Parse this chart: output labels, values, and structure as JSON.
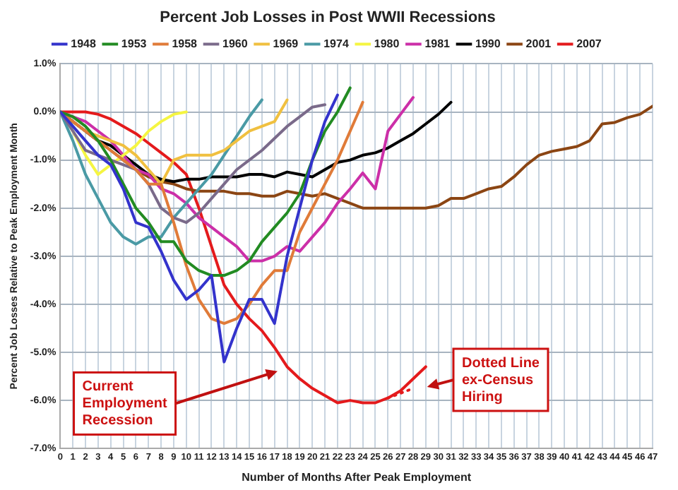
{
  "chart_data": {
    "type": "line",
    "title": "Percent Job Losses in Post WWII Recessions",
    "xlabel": "Number of Months After Peak Employment",
    "ylabel": "Percent Job Losses Relative to Peak Employment Month",
    "x": [
      0,
      1,
      2,
      3,
      4,
      5,
      6,
      7,
      8,
      9,
      10,
      11,
      12,
      13,
      14,
      15,
      16,
      17,
      18,
      19,
      20,
      21,
      22,
      23,
      24,
      25,
      26,
      27,
      28,
      29,
      30,
      31,
      32,
      33,
      34,
      35,
      36,
      37,
      38,
      39,
      40,
      41,
      42,
      43,
      44,
      45,
      46,
      47
    ],
    "xlim": [
      0,
      47
    ],
    "xticks": [
      0,
      1,
      2,
      3,
      4,
      5,
      6,
      7,
      8,
      9,
      10,
      11,
      12,
      13,
      14,
      15,
      16,
      17,
      18,
      19,
      20,
      21,
      22,
      23,
      24,
      25,
      26,
      27,
      28,
      29,
      30,
      31,
      32,
      33,
      34,
      35,
      36,
      37,
      38,
      39,
      40,
      41,
      42,
      43,
      44,
      45,
      46,
      47
    ],
    "ylim": [
      -7,
      1
    ],
    "yticks": [
      {
        "value": -7,
        "label": "-7.0%"
      },
      {
        "value": -6,
        "label": "-6.0%"
      },
      {
        "value": -5,
        "label": "-5.0%"
      },
      {
        "value": -4,
        "label": "-4.0%"
      },
      {
        "value": -3,
        "label": "-3.0%"
      },
      {
        "value": -2,
        "label": "-2.0%"
      },
      {
        "value": -1,
        "label": "-1.0%"
      },
      {
        "value": 0,
        "label": "0.0%"
      },
      {
        "value": 1,
        "label": "1.0%"
      }
    ],
    "grid": true,
    "legend": "top",
    "marker": "none",
    "series": [
      {
        "name": "1948",
        "color": "#3333cc",
        "values": [
          0,
          -0.3,
          -0.6,
          -0.9,
          -1.1,
          -1.6,
          -2.3,
          -2.4,
          -2.9,
          -3.5,
          -3.9,
          -3.7,
          -3.4,
          -5.2,
          -4.5,
          -3.9,
          -3.9,
          -4.4,
          -3.0,
          -2.0,
          -1.0,
          -0.2,
          0.35,
          null,
          null,
          null,
          null,
          null,
          null,
          null,
          null,
          null,
          null,
          null,
          null,
          null,
          null,
          null,
          null,
          null,
          null,
          null,
          null,
          null,
          null,
          null,
          null,
          null
        ]
      },
      {
        "name": "1953",
        "color": "#228b22",
        "values": [
          0,
          -0.1,
          -0.3,
          -0.6,
          -1.0,
          -1.5,
          -2.0,
          -2.3,
          -2.7,
          -2.7,
          -3.1,
          -3.3,
          -3.4,
          -3.4,
          -3.3,
          -3.1,
          -2.7,
          -2.4,
          -2.1,
          -1.7,
          -1.0,
          -0.4,
          0.0,
          0.5,
          null,
          null,
          null,
          null,
          null,
          null,
          null,
          null,
          null,
          null,
          null,
          null,
          null,
          null,
          null,
          null,
          null,
          null,
          null,
          null,
          null,
          null,
          null,
          null
        ]
      },
      {
        "name": "1958",
        "color": "#e07b39",
        "values": [
          0,
          -0.2,
          -0.4,
          -0.6,
          -0.8,
          -1.0,
          -1.2,
          -1.5,
          -1.5,
          -2.3,
          -3.2,
          -3.9,
          -4.3,
          -4.4,
          -4.3,
          -4.0,
          -3.6,
          -3.3,
          -3.3,
          -2.5,
          -2.0,
          -1.5,
          -1.0,
          -0.4,
          0.2,
          null,
          null,
          null,
          null,
          null,
          null,
          null,
          null,
          null,
          null,
          null,
          null,
          null,
          null,
          null,
          null,
          null,
          null,
          null,
          null,
          null,
          null,
          null
        ]
      },
      {
        "name": "1960",
        "color": "#7a6a8a",
        "values": [
          0,
          -0.4,
          -0.8,
          -0.9,
          -1.0,
          -1.1,
          -1.2,
          -1.5,
          -2.0,
          -2.2,
          -2.3,
          -2.1,
          -1.8,
          -1.5,
          -1.2,
          -1.0,
          -0.8,
          -0.55,
          -0.3,
          -0.1,
          0.1,
          0.15,
          null,
          null,
          null,
          null,
          null,
          null,
          null,
          null,
          null,
          null,
          null,
          null,
          null,
          null,
          null,
          null,
          null,
          null,
          null,
          null,
          null,
          null,
          null,
          null,
          null,
          null
        ]
      },
      {
        "name": "1969",
        "color": "#f0c040",
        "values": [
          0,
          -0.2,
          -0.4,
          -0.5,
          -0.6,
          -0.7,
          -0.9,
          -1.2,
          -1.5,
          -1.0,
          -0.9,
          -0.9,
          -0.9,
          -0.8,
          -0.6,
          -0.4,
          -0.3,
          -0.2,
          0.25,
          null,
          null,
          null,
          null,
          null,
          null,
          null,
          null,
          null,
          null,
          null,
          null,
          null,
          null,
          null,
          null,
          null,
          null,
          null,
          null,
          null,
          null,
          null,
          null,
          null,
          null,
          null,
          null,
          null
        ]
      },
      {
        "name": "1974",
        "color": "#4a9aa5",
        "values": [
          0,
          -0.6,
          -1.3,
          -1.8,
          -2.3,
          -2.6,
          -2.75,
          -2.6,
          -2.6,
          -2.2,
          -1.9,
          -1.6,
          -1.3,
          -0.9,
          -0.5,
          -0.1,
          0.25,
          null,
          null,
          null,
          null,
          null,
          null,
          null,
          null,
          null,
          null,
          null,
          null,
          null,
          null,
          null,
          null,
          null,
          null,
          null,
          null,
          null,
          null,
          null,
          null,
          null,
          null,
          null,
          null,
          null,
          null,
          null
        ]
      },
      {
        "name": "1980",
        "color": "#f5f542",
        "values": [
          0,
          -0.4,
          -0.9,
          -1.3,
          -1.1,
          -0.9,
          -0.7,
          -0.4,
          -0.2,
          -0.05,
          0.0,
          null,
          null,
          null,
          null,
          null,
          null,
          null,
          null,
          null,
          null,
          null,
          null,
          null,
          null,
          null,
          null,
          null,
          null,
          null,
          null,
          null,
          null,
          null,
          null,
          null,
          null,
          null,
          null,
          null,
          null,
          null,
          null,
          null,
          null,
          null,
          null,
          null
        ]
      },
      {
        "name": "1981",
        "color": "#cc2fa8",
        "values": [
          0,
          -0.1,
          -0.2,
          -0.4,
          -0.6,
          -0.9,
          -1.2,
          -1.3,
          -1.6,
          -1.7,
          -1.9,
          -2.2,
          -2.4,
          -2.6,
          -2.8,
          -3.1,
          -3.1,
          -3.0,
          -2.8,
          -2.9,
          -2.6,
          -2.3,
          -1.9,
          -1.6,
          -1.27,
          -1.6,
          -0.4,
          -0.05,
          0.3,
          null,
          null,
          null,
          null,
          null,
          null,
          null,
          null,
          null,
          null,
          null,
          null,
          null,
          null,
          null,
          null,
          null,
          null,
          null
        ]
      },
      {
        "name": "1990",
        "color": "#000000",
        "values": [
          0,
          -0.2,
          -0.4,
          -0.6,
          -0.7,
          -0.9,
          -1.1,
          -1.3,
          -1.4,
          -1.45,
          -1.4,
          -1.4,
          -1.35,
          -1.35,
          -1.35,
          -1.3,
          -1.3,
          -1.35,
          -1.25,
          -1.3,
          -1.35,
          -1.2,
          -1.05,
          -1.0,
          -0.9,
          -0.85,
          -0.75,
          -0.6,
          -0.45,
          -0.25,
          -0.05,
          0.2,
          null,
          null,
          null,
          null,
          null,
          null,
          null,
          null,
          null,
          null,
          null,
          null,
          null,
          null,
          null,
          null
        ]
      },
      {
        "name": "2001",
        "color": "#8b4513",
        "values": [
          0,
          -0.2,
          -0.4,
          -0.6,
          -0.8,
          -1.0,
          -1.2,
          -1.35,
          -1.45,
          -1.5,
          -1.6,
          -1.65,
          -1.65,
          -1.65,
          -1.7,
          -1.7,
          -1.75,
          -1.75,
          -1.65,
          -1.7,
          -1.75,
          -1.7,
          -1.8,
          -1.9,
          -2.0,
          -2.0,
          -2.0,
          -2.0,
          -2.0,
          -2.0,
          -1.95,
          -1.8,
          -1.8,
          -1.7,
          -1.6,
          -1.55,
          -1.35,
          -1.1,
          -0.9,
          -0.82,
          -0.77,
          -0.72,
          -0.6,
          -0.25,
          -0.22,
          -0.12,
          -0.05,
          0.12
        ]
      },
      {
        "name": "2007",
        "color": "#e41a1c",
        "values": [
          0,
          0,
          0,
          -0.05,
          -0.15,
          -0.3,
          -0.45,
          -0.65,
          -0.85,
          -1.05,
          -1.3,
          -2.0,
          -2.8,
          -3.6,
          -4.0,
          -4.3,
          -4.55,
          -4.9,
          -5.3,
          -5.55,
          -5.75,
          -5.9,
          -6.05,
          -6.0,
          -6.05,
          -6.05,
          -5.95,
          -5.8,
          -5.55,
          -5.3,
          null,
          null,
          null,
          null,
          null,
          null,
          null,
          null,
          null,
          null,
          null,
          null,
          null,
          null,
          null,
          null,
          null,
          null
        ]
      },
      {
        "color": "#e41a1c",
        "line_style": "dotted",
        "values": [
          null,
          null,
          null,
          null,
          null,
          null,
          null,
          null,
          null,
          null,
          null,
          null,
          null,
          null,
          null,
          null,
          null,
          null,
          null,
          null,
          null,
          null,
          null,
          null,
          null,
          null,
          -5.95,
          -5.85,
          -5.75,
          null,
          null,
          null,
          null,
          null,
          null,
          null,
          null,
          null,
          null,
          null,
          null,
          null,
          null,
          null,
          null,
          null,
          null,
          null
        ]
      }
    ],
    "annotations": [
      "Current Employment Recession",
      "Dotted Line ex-Census Hiring"
    ]
  }
}
